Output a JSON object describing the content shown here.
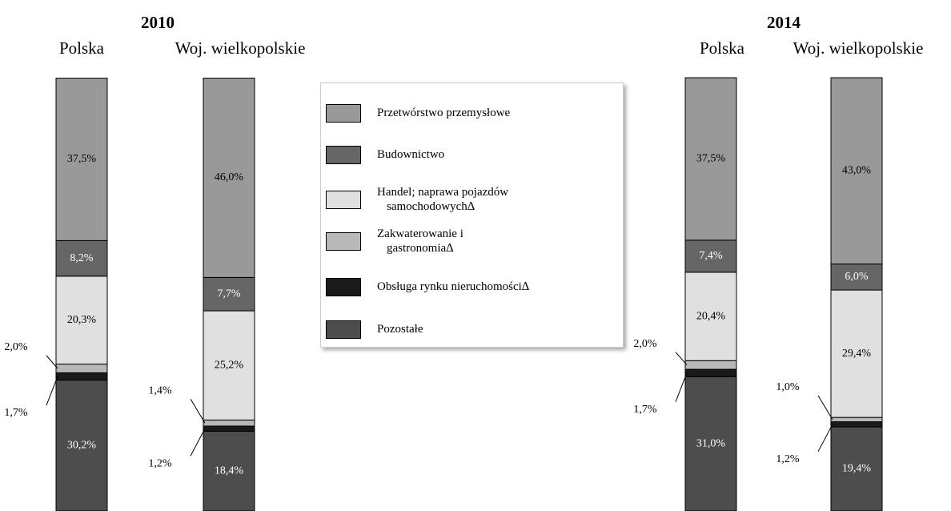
{
  "chart_data": {
    "type": "stacked_bar",
    "group_labels": [
      "2010",
      "2014"
    ],
    "categories": [
      "Polska",
      "Woj. wielkopolskie",
      "Polska",
      "Woj. wielkopolskie"
    ],
    "series": [
      {
        "name": "Przetwórstwo przemysłowe",
        "color": "#999999",
        "values": [
          37.5,
          46.0,
          37.5,
          43.0
        ],
        "value_labels": [
          "37,5%",
          "46,0%",
          "37,5%",
          "43,0%"
        ]
      },
      {
        "name": "Budownictwo",
        "color": "#666666",
        "values": [
          8.2,
          7.7,
          7.4,
          6.0
        ],
        "value_labels": [
          "8,2%",
          "7,7%",
          "7,4%",
          "6,0%"
        ]
      },
      {
        "name": "Handel; naprawa pojazdów samochodowych∆",
        "color": "#e0e0e0",
        "values": [
          20.3,
          25.2,
          20.4,
          29.4
        ],
        "value_labels": [
          "20,3%",
          "25,2%",
          "20,4%",
          "29,4%"
        ]
      },
      {
        "name": "Zakwaterowanie i gastronomia∆",
        "color": "#b8b8b8",
        "values": [
          2.0,
          1.4,
          2.0,
          1.0
        ],
        "value_labels": [
          "2,0%",
          "1,4%",
          "2,0%",
          "1,0%"
        ]
      },
      {
        "name": "Obsługa rynku nieruchomości∆",
        "color": "#1a1a1a",
        "values": [
          1.7,
          1.2,
          1.7,
          1.2
        ],
        "value_labels": [
          "1,7%",
          "1,2%",
          "1,7%",
          "1,2%"
        ]
      },
      {
        "name": "Pozostałe",
        "color": "#4d4d4d",
        "values": [
          30.2,
          18.4,
          31.0,
          19.4
        ],
        "value_labels": [
          "30,2%",
          "18,4%",
          "31,0%",
          "19,4%"
        ]
      }
    ]
  }
}
